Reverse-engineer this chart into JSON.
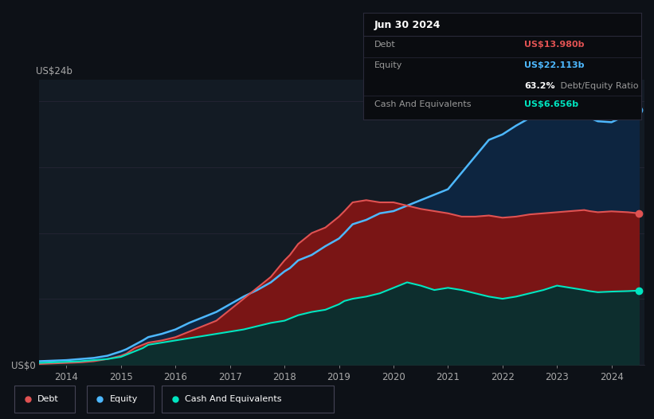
{
  "background_color": "#0d1117",
  "plot_bg_color": "#131b24",
  "title_box": {
    "date": "Jun 30 2024",
    "debt_label": "Debt",
    "debt_value": "US$13.980b",
    "debt_color": "#e05252",
    "equity_label": "Equity",
    "equity_value": "US$22.113b",
    "equity_color": "#4db8ff",
    "ratio_value": "63.2%",
    "ratio_label": " Debt/Equity Ratio",
    "cash_label": "Cash And Equivalents",
    "cash_value": "US$6.656b",
    "cash_color": "#00e5c0"
  },
  "ylabel_top": "US$24b",
  "ylabel_bottom": "US$0",
  "x_ticks": [
    "2014",
    "2015",
    "2016",
    "2017",
    "2018",
    "2019",
    "2020",
    "2021",
    "2022",
    "2023",
    "2024"
  ],
  "debt_color": "#e05252",
  "equity_color": "#4db8ff",
  "cash_color": "#00e5c0",
  "debt_fill_color": "#7a1515",
  "equity_fill_color": "#0d2540",
  "cash_fill_color": "#0d2e2e",
  "legend": [
    {
      "label": "Debt",
      "color": "#e05252"
    },
    {
      "label": "Equity",
      "color": "#4db8ff"
    },
    {
      "label": "Cash And Equivalents",
      "color": "#00e5c0"
    }
  ],
  "years": [
    2013.5,
    2013.75,
    2014.0,
    2014.25,
    2014.5,
    2014.75,
    2015.0,
    2015.1,
    2015.25,
    2015.4,
    2015.5,
    2015.75,
    2016.0,
    2016.25,
    2016.5,
    2016.75,
    2017.0,
    2017.25,
    2017.5,
    2017.75,
    2018.0,
    2018.1,
    2018.25,
    2018.5,
    2018.75,
    2019.0,
    2019.1,
    2019.25,
    2019.5,
    2019.75,
    2020.0,
    2020.25,
    2020.5,
    2020.75,
    2021.0,
    2021.25,
    2021.5,
    2021.75,
    2022.0,
    2022.25,
    2022.5,
    2022.75,
    2023.0,
    2023.25,
    2023.5,
    2023.6,
    2023.75,
    2024.0,
    2024.3,
    2024.5
  ],
  "debt": [
    0.05,
    0.1,
    0.15,
    0.2,
    0.3,
    0.5,
    0.8,
    1.0,
    1.5,
    1.8,
    2.0,
    2.2,
    2.5,
    3.0,
    3.5,
    4.0,
    5.0,
    6.0,
    7.0,
    8.0,
    9.5,
    10.0,
    11.0,
    12.0,
    12.5,
    13.5,
    14.0,
    14.8,
    15.0,
    14.8,
    14.8,
    14.5,
    14.2,
    14.0,
    13.8,
    13.5,
    13.5,
    13.6,
    13.4,
    13.5,
    13.7,
    13.8,
    13.9,
    14.0,
    14.1,
    14.0,
    13.9,
    13.98,
    13.9,
    13.8
  ],
  "equity": [
    0.3,
    0.35,
    0.4,
    0.5,
    0.6,
    0.8,
    1.2,
    1.4,
    1.8,
    2.2,
    2.5,
    2.8,
    3.2,
    3.8,
    4.3,
    4.8,
    5.5,
    6.2,
    6.8,
    7.5,
    8.5,
    8.8,
    9.5,
    10.0,
    10.8,
    11.5,
    12.0,
    12.8,
    13.2,
    13.8,
    14.0,
    14.5,
    15.0,
    15.5,
    16.0,
    17.5,
    19.0,
    20.5,
    21.0,
    21.8,
    22.5,
    23.0,
    24.5,
    24.2,
    23.0,
    22.5,
    22.2,
    22.113,
    22.8,
    23.2
  ],
  "cash": [
    0.15,
    0.2,
    0.25,
    0.3,
    0.4,
    0.5,
    0.7,
    0.9,
    1.2,
    1.5,
    1.8,
    2.0,
    2.2,
    2.4,
    2.6,
    2.8,
    3.0,
    3.2,
    3.5,
    3.8,
    4.0,
    4.2,
    4.5,
    4.8,
    5.0,
    5.5,
    5.8,
    6.0,
    6.2,
    6.5,
    7.0,
    7.5,
    7.2,
    6.8,
    7.0,
    6.8,
    6.5,
    6.2,
    6.0,
    6.2,
    6.5,
    6.8,
    7.2,
    7.0,
    6.8,
    6.7,
    6.6,
    6.656,
    6.7,
    6.75
  ]
}
